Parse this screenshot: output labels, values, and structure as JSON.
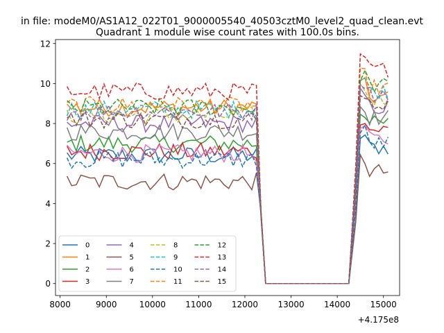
{
  "chart_data": {
    "type": "line",
    "suptitle": "in file: modeM0/AS1A12_022T01_9000005540_40503cztM0_level2_quad_clean.evt",
    "title": "Quadrant 1 module wise count rates with 100.0s bins.",
    "xlabel": "",
    "ylabel": "",
    "x_offset_label": "+4.175e8",
    "xlim": [
      7900,
      15350
    ],
    "ylim": [
      -0.6,
      12.2
    ],
    "xticks": [
      8000,
      9000,
      10000,
      11000,
      12000,
      13000,
      14000,
      15000
    ],
    "yticks": [
      0,
      2,
      4,
      6,
      8,
      10,
      12
    ],
    "grid": false,
    "legend": {
      "placement": "lower-left",
      "ncol": 4
    },
    "series": [
      {
        "name": "0",
        "color": "#1f77b4",
        "dash": "solid",
        "level": 6.4,
        "post": 6.8
      },
      {
        "name": "1",
        "color": "#ff7f0e",
        "dash": "solid",
        "level": 8.8,
        "post": 9.3
      },
      {
        "name": "2",
        "color": "#2ca02c",
        "dash": "solid",
        "level": 7.0,
        "post": 8.0
      },
      {
        "name": "3",
        "color": "#d62728",
        "dash": "solid",
        "level": 6.6,
        "post": 7.7
      },
      {
        "name": "4",
        "color": "#9467bd",
        "dash": "solid",
        "level": 8.0,
        "post": 8.8
      },
      {
        "name": "5",
        "color": "#8c564b",
        "dash": "solid",
        "level": 5.1,
        "post": 5.6
      },
      {
        "name": "6",
        "color": "#e377c2",
        "dash": "solid",
        "level": 6.5,
        "post": 7.2
      },
      {
        "name": "7",
        "color": "#7f7f7f",
        "dash": "solid",
        "level": 7.6,
        "post": 8.3
      },
      {
        "name": "8",
        "color": "#bcbd22",
        "dash": "dashed",
        "level": 8.4,
        "post": 9.2
      },
      {
        "name": "9",
        "color": "#17becf",
        "dash": "dashed",
        "level": 8.7,
        "post": 9.6
      },
      {
        "name": "10",
        "color": "#1f77b4",
        "dash": "dashed",
        "level": 6.2,
        "post": 7.0
      },
      {
        "name": "11",
        "color": "#ff7f0e",
        "dash": "dashed",
        "level": 8.9,
        "post": 9.8
      },
      {
        "name": "12",
        "color": "#2ca02c",
        "dash": "dashed",
        "level": 8.8,
        "post": 9.9
      },
      {
        "name": "13",
        "color": "#d62728",
        "dash": "dashed",
        "level": 9.6,
        "post": 10.7
      },
      {
        "name": "14",
        "color": "#9467bd",
        "dash": "dashed",
        "level": 8.6,
        "post": 9.5
      },
      {
        "name": "15",
        "color": "#8c564b",
        "dash": "dashed",
        "level": 8.2,
        "post": 9.0
      }
    ],
    "time_segments": {
      "on1": [
        8150,
        12250
      ],
      "drop_end": 12450,
      "gap": [
        12450,
        14300
      ],
      "rise_end": 14500,
      "on2": [
        14500,
        15100
      ],
      "bin": 100
    }
  }
}
